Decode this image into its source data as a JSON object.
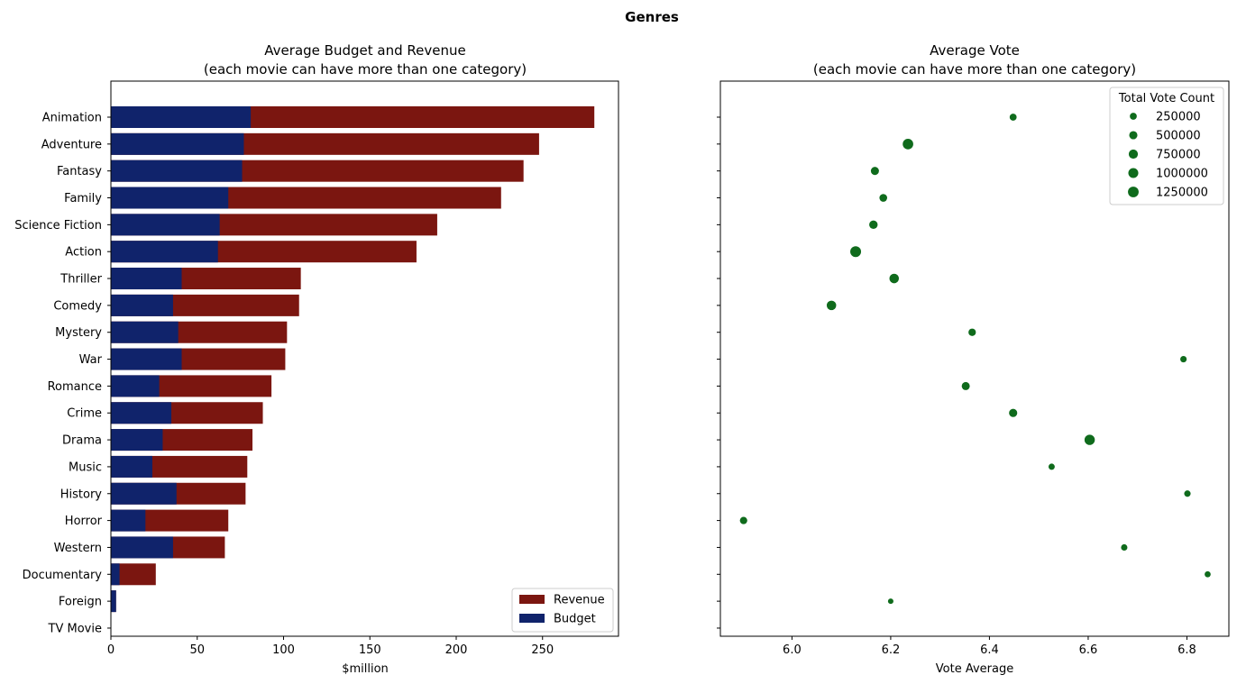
{
  "suptitle": "Genres",
  "chart_data": [
    {
      "type": "bar",
      "orientation": "horizontal",
      "stacked": false,
      "title": "Average Budget and Revenue\n(each movie can have more than one category)",
      "xlabel": "$million",
      "ylabel": "",
      "xlim": [
        0,
        294
      ],
      "xticks": [
        0,
        50,
        100,
        150,
        200,
        250
      ],
      "grid": false,
      "legend": {
        "placement": "lower-right",
        "entries": [
          "Revenue",
          "Budget"
        ]
      },
      "categories": [
        "Animation",
        "Adventure",
        "Fantasy",
        "Family",
        "Science Fiction",
        "Action",
        "Thriller",
        "Comedy",
        "Mystery",
        "War",
        "Romance",
        "Crime",
        "Drama",
        "Music",
        "History",
        "Horror",
        "Western",
        "Documentary",
        "Foreign",
        "TV Movie"
      ],
      "series": [
        {
          "name": "Revenue",
          "color": "#7b1610",
          "values": [
            280,
            248,
            239,
            226,
            189,
            177,
            110,
            109,
            102,
            101,
            93,
            88,
            82,
            79,
            78,
            68,
            66,
            26,
            3,
            0
          ]
        },
        {
          "name": "Budget",
          "color": "#10236b",
          "values": [
            81,
            77,
            76,
            68,
            63,
            62,
            41,
            36,
            39,
            41,
            28,
            35,
            30,
            24,
            38,
            20,
            36,
            5,
            3,
            0
          ]
        }
      ]
    },
    {
      "type": "scatter",
      "title": "Average Vote\n(each movie can have more than one category)",
      "xlabel": "Vote Average",
      "ylabel": "",
      "xlim": [
        5.855,
        6.885
      ],
      "xticks": [
        "6.0",
        "6.2",
        "6.4",
        "6.6",
        "6.8"
      ],
      "grid": false,
      "color": "#0f6b1c",
      "categories": [
        "Animation",
        "Adventure",
        "Fantasy",
        "Family",
        "Science Fiction",
        "Action",
        "Thriller",
        "Comedy",
        "Mystery",
        "War",
        "Romance",
        "Crime",
        "Drama",
        "Music",
        "History",
        "Horror",
        "Western",
        "Documentary",
        "Foreign",
        "TV Movie"
      ],
      "points": [
        {
          "category": "Animation",
          "x": 6.448,
          "size": 260000
        },
        {
          "category": "Adventure",
          "x": 6.235,
          "size": 1200000
        },
        {
          "category": "Fantasy",
          "x": 6.168,
          "size": 480000
        },
        {
          "category": "Family",
          "x": 6.185,
          "size": 400000
        },
        {
          "category": "Science Fiction",
          "x": 6.165,
          "size": 560000
        },
        {
          "category": "Action",
          "x": 6.129,
          "size": 1300000
        },
        {
          "category": "Thriller",
          "x": 6.207,
          "size": 850000
        },
        {
          "category": "Comedy",
          "x": 6.08,
          "size": 850000
        },
        {
          "category": "Mystery",
          "x": 6.365,
          "size": 330000
        },
        {
          "category": "War",
          "x": 6.793,
          "size": 170000
        },
        {
          "category": "Romance",
          "x": 6.352,
          "size": 470000
        },
        {
          "category": "Crime",
          "x": 6.448,
          "size": 500000
        },
        {
          "category": "Drama",
          "x": 6.603,
          "size": 1100000
        },
        {
          "category": "Music",
          "x": 6.526,
          "size": 150000
        },
        {
          "category": "History",
          "x": 6.801,
          "size": 170000
        },
        {
          "category": "Horror",
          "x": 5.902,
          "size": 320000
        },
        {
          "category": "Western",
          "x": 6.673,
          "size": 160000
        },
        {
          "category": "Documentary",
          "x": 6.842,
          "size": 120000
        },
        {
          "category": "Foreign",
          "x": 6.2,
          "size": 60000
        }
      ],
      "legend": {
        "title": "Total Vote Count",
        "placement": "upper-right",
        "entries": [
          "250000",
          "500000",
          "750000",
          "1000000",
          "1250000"
        ],
        "entry_sizes": [
          250000,
          500000,
          750000,
          1000000,
          1250000
        ]
      }
    }
  ]
}
